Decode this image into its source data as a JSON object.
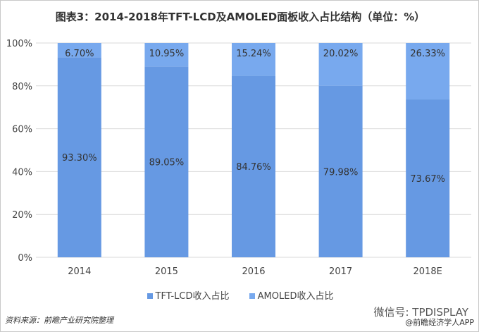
{
  "chart_data": {
    "type": "bar",
    "stacked": true,
    "title": "图表3：2014-2018年TFT-LCD及AMOLED面板收入占比结构（单位：%）",
    "categories": [
      "2014",
      "2015",
      "2016",
      "2017",
      "2018E"
    ],
    "series": [
      {
        "name": "TFT-LCD收入占比",
        "values": [
          93.3,
          89.05,
          84.76,
          79.98,
          73.67
        ],
        "labels": [
          "93.30%",
          "89.05%",
          "84.76%",
          "79.98%",
          "73.67%"
        ],
        "color": "#6699e3"
      },
      {
        "name": "AMOLED收入占比",
        "values": [
          6.7,
          10.95,
          15.24,
          20.02,
          26.33
        ],
        "labels": [
          "6.70%",
          "10.95%",
          "15.24%",
          "20.02%",
          "26.33%"
        ],
        "color": "#78a9ee"
      }
    ],
    "ylim": [
      0,
      100
    ],
    "yticks": [
      "0%",
      "20%",
      "40%",
      "60%",
      "80%",
      "100%"
    ],
    "grid": true,
    "legend": "bottom"
  },
  "footer": {
    "source": "资料来源：前瞻产业研究院整理",
    "wechat": "微信号: TPDISPLAY",
    "app": "@前瞻经济学人APP"
  }
}
